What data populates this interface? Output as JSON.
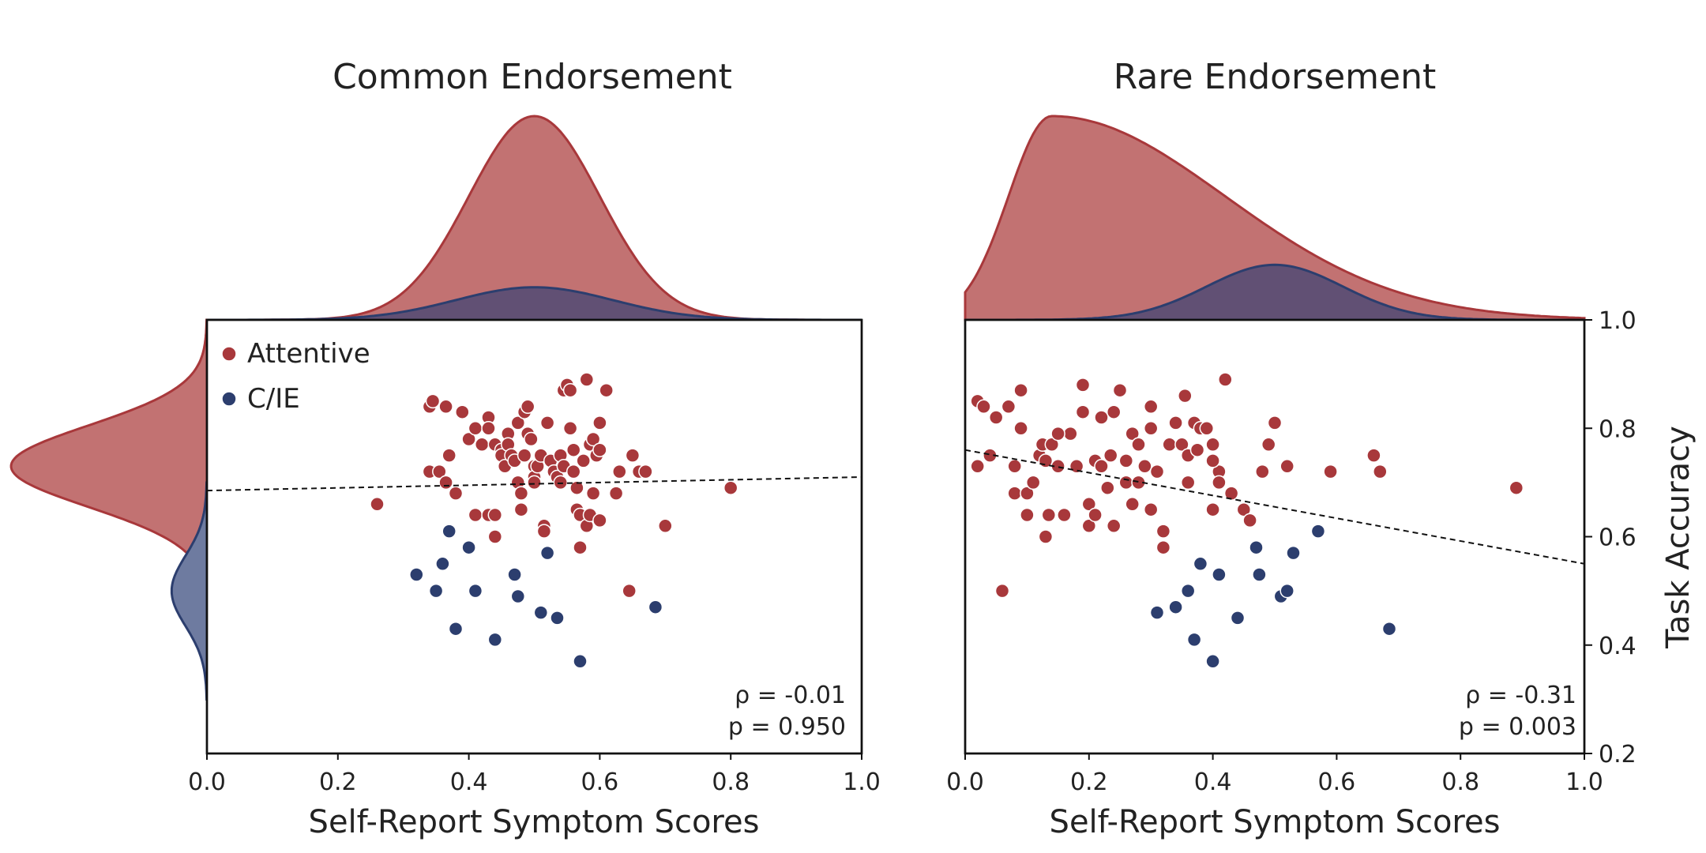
{
  "colors": {
    "attentive": "#a8383b",
    "cie": "#2c3e6e",
    "attentive_fill": "#c27272",
    "cie_fill": "#5c4e74",
    "cie_fill_solid": "#6e7ba0"
  },
  "shared_ylabel": "Task Accuracy",
  "legend": {
    "attentive": "Attentive",
    "cie": "C/IE",
    "placement": "upper-left"
  },
  "chart_data": [
    {
      "type": "scatter",
      "title": "Common Endorsement",
      "xlabel": "Self-Report Symptom Scores",
      "xlim": [
        0,
        1
      ],
      "ylim": [
        0.2,
        1.0
      ],
      "xticks": [
        "0.0",
        "0.2",
        "0.4",
        "0.6",
        "0.8",
        "1.0"
      ],
      "stats": {
        "rho": "ρ = -0.01",
        "p": "p = 0.950"
      },
      "regression": {
        "x": [
          0,
          1
        ],
        "y": [
          0.685,
          0.71
        ]
      },
      "marginals": {
        "x": {
          "attentive": {
            "mean": 0.5,
            "sd": 0.1,
            "peak": 1.0
          },
          "cie": {
            "mean": 0.5,
            "sd": 0.12,
            "peak": 0.16
          }
        },
        "y": {
          "attentive": {
            "mean": 0.73,
            "sd": 0.075,
            "peak": 1.0
          },
          "cie": {
            "mean": 0.5,
            "sd": 0.065,
            "peak": 0.18
          }
        }
      },
      "series": [
        {
          "name": "Attentive",
          "points": [
            [
              0.26,
              0.66
            ],
            [
              0.34,
              0.84
            ],
            [
              0.345,
              0.85
            ],
            [
              0.34,
              0.72
            ],
            [
              0.355,
              0.72
            ],
            [
              0.365,
              0.84
            ],
            [
              0.37,
              0.75
            ],
            [
              0.365,
              0.7
            ],
            [
              0.38,
              0.68
            ],
            [
              0.39,
              0.83
            ],
            [
              0.4,
              0.78
            ],
            [
              0.41,
              0.8
            ],
            [
              0.41,
              0.64
            ],
            [
              0.42,
              0.77
            ],
            [
              0.43,
              0.82
            ],
            [
              0.43,
              0.8
            ],
            [
              0.43,
              0.64
            ],
            [
              0.44,
              0.64
            ],
            [
              0.44,
              0.77
            ],
            [
              0.44,
              0.6
            ],
            [
              0.45,
              0.76
            ],
            [
              0.45,
              0.75
            ],
            [
              0.455,
              0.73
            ],
            [
              0.46,
              0.79
            ],
            [
              0.46,
              0.77
            ],
            [
              0.465,
              0.75
            ],
            [
              0.47,
              0.74
            ],
            [
              0.475,
              0.81
            ],
            [
              0.475,
              0.7
            ],
            [
              0.48,
              0.65
            ],
            [
              0.48,
              0.68
            ],
            [
              0.485,
              0.75
            ],
            [
              0.485,
              0.83
            ],
            [
              0.49,
              0.84
            ],
            [
              0.49,
              0.79
            ],
            [
              0.495,
              0.78
            ],
            [
              0.5,
              0.73
            ],
            [
              0.5,
              0.71
            ],
            [
              0.5,
              0.7
            ],
            [
              0.505,
              0.73
            ],
            [
              0.51,
              0.75
            ],
            [
              0.515,
              0.62
            ],
            [
              0.515,
              0.61
            ],
            [
              0.52,
              0.81
            ],
            [
              0.525,
              0.74
            ],
            [
              0.53,
              0.72
            ],
            [
              0.535,
              0.71
            ],
            [
              0.54,
              0.75
            ],
            [
              0.54,
              0.7
            ],
            [
              0.545,
              0.73
            ],
            [
              0.545,
              0.87
            ],
            [
              0.55,
              0.88
            ],
            [
              0.555,
              0.87
            ],
            [
              0.555,
              0.8
            ],
            [
              0.56,
              0.76
            ],
            [
              0.56,
              0.72
            ],
            [
              0.565,
              0.69
            ],
            [
              0.565,
              0.65
            ],
            [
              0.57,
              0.64
            ],
            [
              0.57,
              0.58
            ],
            [
              0.575,
              0.74
            ],
            [
              0.58,
              0.89
            ],
            [
              0.58,
              0.62
            ],
            [
              0.585,
              0.77
            ],
            [
              0.585,
              0.64
            ],
            [
              0.59,
              0.78
            ],
            [
              0.595,
              0.75
            ],
            [
              0.6,
              0.81
            ],
            [
              0.6,
              0.76
            ],
            [
              0.6,
              0.63
            ],
            [
              0.61,
              0.87
            ],
            [
              0.625,
              0.68
            ],
            [
              0.63,
              0.72
            ],
            [
              0.645,
              0.5
            ],
            [
              0.65,
              0.75
            ],
            [
              0.66,
              0.72
            ],
            [
              0.67,
              0.72
            ],
            [
              0.7,
              0.62
            ],
            [
              0.8,
              0.69
            ],
            [
              0.59,
              0.68
            ]
          ]
        },
        {
          "name": "C/IE",
          "points": [
            [
              0.32,
              0.53
            ],
            [
              0.35,
              0.5
            ],
            [
              0.36,
              0.55
            ],
            [
              0.37,
              0.61
            ],
            [
              0.38,
              0.43
            ],
            [
              0.4,
              0.58
            ],
            [
              0.41,
              0.5
            ],
            [
              0.44,
              0.41
            ],
            [
              0.47,
              0.53
            ],
            [
              0.475,
              0.49
            ],
            [
              0.51,
              0.46
            ],
            [
              0.52,
              0.57
            ],
            [
              0.535,
              0.45
            ],
            [
              0.57,
              0.37
            ],
            [
              0.685,
              0.47
            ]
          ]
        }
      ]
    },
    {
      "type": "scatter",
      "title": "Rare Endorsement",
      "xlabel": "Self-Report Symptom Scores",
      "ylabel": "Task Accuracy",
      "xlim": [
        0,
        1
      ],
      "ylim": [
        0.2,
        1.0
      ],
      "xticks": [
        "0.0",
        "0.2",
        "0.4",
        "0.6",
        "0.8",
        "1.0"
      ],
      "yticks": [
        "0.2",
        "0.4",
        "0.6",
        "0.8",
        "1.0"
      ],
      "stats": {
        "rho": "ρ = -0.31",
        "p": "p = 0.003"
      },
      "regression": {
        "x": [
          0,
          1
        ],
        "y": [
          0.76,
          0.55
        ]
      },
      "marginals": {
        "x": {
          "attentive": {
            "mean": 0.14,
            "sd_left": 0.07,
            "sd_right": 0.28,
            "peak": 1.0
          },
          "cie": {
            "mean": 0.5,
            "sd": 0.11,
            "peak": 0.27
          }
        }
      },
      "series": [
        {
          "name": "Attentive",
          "points": [
            [
              0.02,
              0.85
            ],
            [
              0.02,
              0.73
            ],
            [
              0.03,
              0.84
            ],
            [
              0.04,
              0.75
            ],
            [
              0.05,
              0.82
            ],
            [
              0.06,
              0.5
            ],
            [
              0.07,
              0.84
            ],
            [
              0.08,
              0.68
            ],
            [
              0.08,
              0.73
            ],
            [
              0.09,
              0.87
            ],
            [
              0.09,
              0.8
            ],
            [
              0.1,
              0.68
            ],
            [
              0.1,
              0.64
            ],
            [
              0.11,
              0.7
            ],
            [
              0.12,
              0.75
            ],
            [
              0.125,
              0.77
            ],
            [
              0.13,
              0.74
            ],
            [
              0.13,
              0.6
            ],
            [
              0.135,
              0.64
            ],
            [
              0.14,
              0.77
            ],
            [
              0.15,
              0.73
            ],
            [
              0.16,
              0.64
            ],
            [
              0.17,
              0.79
            ],
            [
              0.18,
              0.73
            ],
            [
              0.19,
              0.83
            ],
            [
              0.19,
              0.88
            ],
            [
              0.2,
              0.66
            ],
            [
              0.2,
              0.62
            ],
            [
              0.21,
              0.64
            ],
            [
              0.21,
              0.74
            ],
            [
              0.22,
              0.82
            ],
            [
              0.22,
              0.73
            ],
            [
              0.23,
              0.69
            ],
            [
              0.235,
              0.75
            ],
            [
              0.24,
              0.83
            ],
            [
              0.24,
              0.62
            ],
            [
              0.25,
              0.87
            ],
            [
              0.26,
              0.74
            ],
            [
              0.26,
              0.7
            ],
            [
              0.27,
              0.79
            ],
            [
              0.27,
              0.66
            ],
            [
              0.28,
              0.77
            ],
            [
              0.28,
              0.7
            ],
            [
              0.29,
              0.73
            ],
            [
              0.3,
              0.84
            ],
            [
              0.3,
              0.8
            ],
            [
              0.3,
              0.65
            ],
            [
              0.31,
              0.72
            ],
            [
              0.32,
              0.61
            ],
            [
              0.32,
              0.58
            ],
            [
              0.33,
              0.77
            ],
            [
              0.34,
              0.81
            ],
            [
              0.35,
              0.77
            ],
            [
              0.355,
              0.86
            ],
            [
              0.36,
              0.75
            ],
            [
              0.36,
              0.7
            ],
            [
              0.37,
              0.81
            ],
            [
              0.375,
              0.76
            ],
            [
              0.38,
              0.8
            ],
            [
              0.39,
              0.8
            ],
            [
              0.4,
              0.77
            ],
            [
              0.4,
              0.65
            ],
            [
              0.41,
              0.72
            ],
            [
              0.41,
              0.7
            ],
            [
              0.42,
              0.89
            ],
            [
              0.43,
              0.68
            ],
            [
              0.45,
              0.65
            ],
            [
              0.46,
              0.63
            ],
            [
              0.48,
              0.72
            ],
            [
              0.49,
              0.77
            ],
            [
              0.5,
              0.81
            ],
            [
              0.52,
              0.73
            ],
            [
              0.59,
              0.72
            ],
            [
              0.66,
              0.75
            ],
            [
              0.67,
              0.72
            ],
            [
              0.89,
              0.69
            ],
            [
              0.4,
              0.74
            ],
            [
              0.15,
              0.79
            ]
          ]
        },
        {
          "name": "C/IE",
          "points": [
            [
              0.31,
              0.46
            ],
            [
              0.34,
              0.47
            ],
            [
              0.36,
              0.5
            ],
            [
              0.37,
              0.41
            ],
            [
              0.38,
              0.55
            ],
            [
              0.4,
              0.37
            ],
            [
              0.41,
              0.53
            ],
            [
              0.44,
              0.45
            ],
            [
              0.47,
              0.58
            ],
            [
              0.475,
              0.53
            ],
            [
              0.51,
              0.49
            ],
            [
              0.52,
              0.5
            ],
            [
              0.53,
              0.57
            ],
            [
              0.57,
              0.61
            ],
            [
              0.685,
              0.43
            ]
          ]
        }
      ]
    }
  ]
}
